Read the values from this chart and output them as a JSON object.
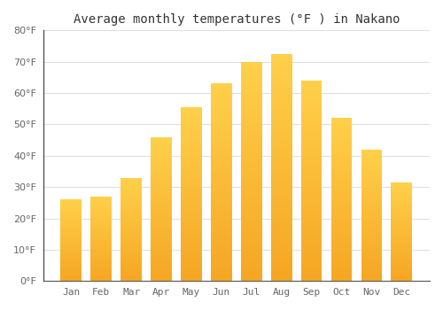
{
  "title": "Average monthly temperatures (°F ) in Nakano",
  "months": [
    "Jan",
    "Feb",
    "Mar",
    "Apr",
    "May",
    "Jun",
    "Jul",
    "Aug",
    "Sep",
    "Oct",
    "Nov",
    "Dec"
  ],
  "values": [
    26,
    27,
    33,
    46,
    55.5,
    63,
    70,
    72.5,
    64,
    52,
    42,
    31.5
  ],
  "ylim": [
    0,
    80
  ],
  "yticks": [
    0,
    10,
    20,
    30,
    40,
    50,
    60,
    70,
    80
  ],
  "background_color": "#ffffff",
  "plot_bg_color": "#ffffff",
  "grid_color": "#e0e0e0",
  "title_fontsize": 10,
  "tick_fontsize": 8,
  "bar_color_bottom": "#F5A623",
  "bar_color_top": "#FFD04A",
  "bar_width": 0.7,
  "spine_color": "#555555",
  "tick_color": "#666666"
}
